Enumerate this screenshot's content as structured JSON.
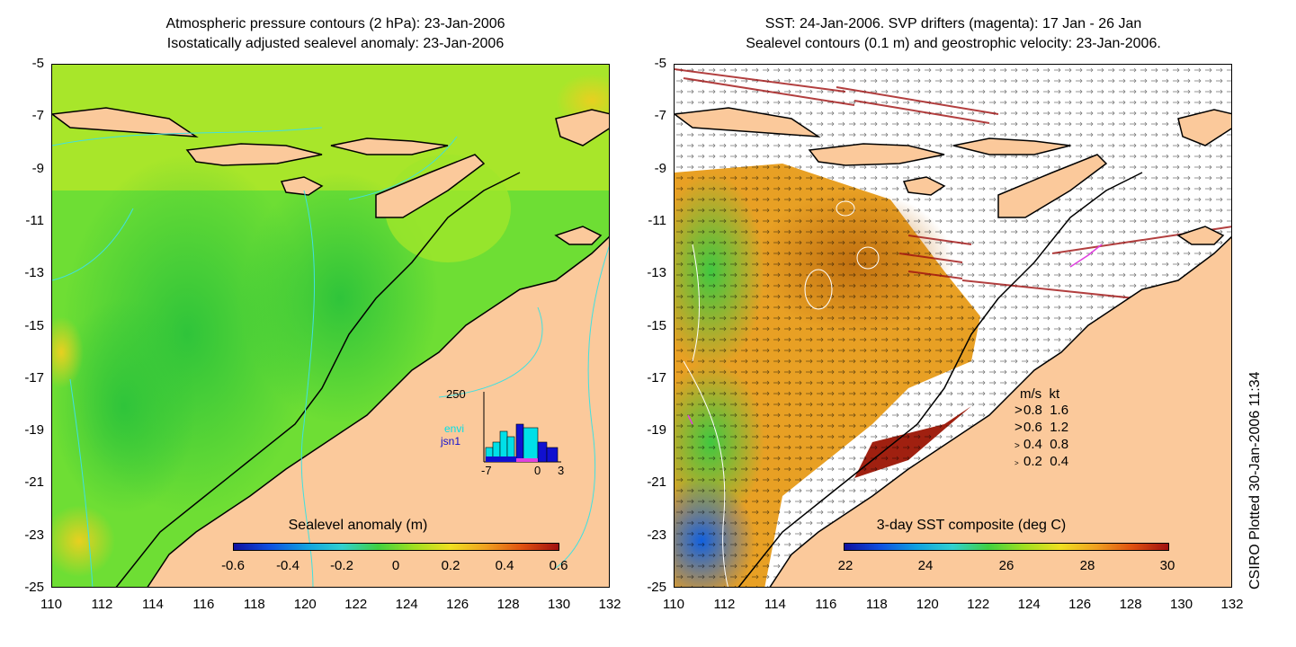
{
  "left_panel": {
    "title_line1": "Atmospheric pressure contours (2 hPa): 23-Jan-2006",
    "title_line2": "Isostatically adjusted sealevel anomaly: 23-Jan-2006",
    "colorbar": {
      "title": "Sealevel anomaly (m)",
      "labels": [
        "-0.6",
        "-0.4",
        "-0.2",
        "0",
        "0.2",
        "0.4",
        "0.6"
      ]
    },
    "histogram": {
      "y_max_label": "250",
      "x_labels": [
        "-7",
        "0",
        "3"
      ],
      "legend": [
        {
          "label": "envi",
          "color": "#00e0e8"
        },
        {
          "label": "jsn1",
          "color": "#1010d0"
        }
      ]
    }
  },
  "right_panel": {
    "title_line1": "SST: 24-Jan-2006. SVP drifters (magenta): 17 Jan - 26 Jan",
    "title_line2": "Sealevel contours (0.1 m) and geostrophic velocity: 23-Jan-2006.",
    "colorbar": {
      "title": "3-day SST composite (deg C)",
      "labels": [
        "22",
        "24",
        "26",
        "28",
        "30"
      ]
    },
    "velocity_legend": {
      "header_ms": "m/s",
      "header_kt": "kt",
      "rows": [
        {
          "ms": "0.8",
          "kt": "1.6"
        },
        {
          "ms": "0.6",
          "kt": "1.2"
        },
        {
          "ms": "0.4",
          "kt": "0.8"
        },
        {
          "ms": "0.2",
          "kt": "0.4"
        }
      ]
    }
  },
  "axes": {
    "lat_labels": [
      "-5",
      "-7",
      "-9",
      "-11",
      "-13",
      "-15",
      "-17",
      "-19",
      "-21",
      "-23",
      "-25"
    ],
    "lon_labels": [
      "110",
      "112",
      "114",
      "116",
      "118",
      "120",
      "122",
      "124",
      "126",
      "128",
      "130",
      "132"
    ]
  },
  "colors": {
    "land": "#fbc99b",
    "sea_green": "#3fd43a",
    "sea_yellow": "#b9ea2a",
    "sst_orange": "#f0a020",
    "coast": "#000000",
    "pressure_contour": "#40e0e0"
  },
  "credit": "CSIRO Plotted 30-Jan-2006 11:34"
}
